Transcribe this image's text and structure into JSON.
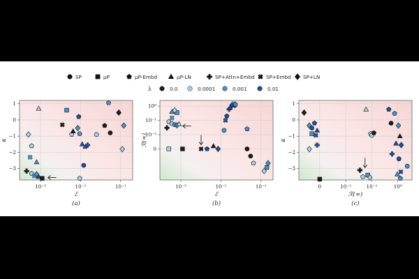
{
  "legend": {
    "markers": [
      {
        "label": "SP",
        "shape": "circle"
      },
      {
        "label": "μP",
        "shape": "square"
      },
      {
        "label": "μP-Embd",
        "shape": "pentagon"
      },
      {
        "label": "μP-LN",
        "shape": "triangle"
      },
      {
        "label": "SP+Attn+Embd",
        "shape": "plus"
      },
      {
        "label": "SP+Embd",
        "shape": "cross"
      },
      {
        "label": "SP+LN",
        "shape": "diamond"
      }
    ],
    "lambda_title": "λ",
    "lambdas": [
      {
        "label": "0.0",
        "color": "#1c1c1c"
      },
      {
        "label": "0.0001",
        "color": "#a9cfe6"
      },
      {
        "label": "0.001",
        "color": "#4a8fc7"
      },
      {
        "label": "0.01",
        "color": "#1f4f98"
      }
    ]
  },
  "chart_data": [
    {
      "type": "scatter",
      "caption": "(a)",
      "xlabel": "ℰ",
      "ylabel": "κ",
      "xscale": "log",
      "xlim": [
        0.0003,
        0.2
      ],
      "ylim": [
        -3.7,
        1.2
      ],
      "xticks": [
        {
          "v": 0.001,
          "label": "10⁻³"
        },
        {
          "v": 0.01,
          "label": "10⁻²"
        },
        {
          "v": 0.1,
          "label": "10⁻¹"
        }
      ],
      "yticks": [
        {
          "v": 1,
          "label": "1"
        },
        {
          "v": 0,
          "label": "0"
        },
        {
          "v": -1,
          "label": "−1"
        },
        {
          "v": -2,
          "label": "−2"
        },
        {
          "v": -3,
          "label": "−3"
        }
      ],
      "annotation": {
        "type": "arrow",
        "direction": "left",
        "at": [
          0.0013,
          -3.55
        ]
      },
      "points": [
        {
          "x": 0.0009,
          "y": -3.5,
          "shape": "triangle",
          "lambda": "0.01"
        },
        {
          "x": 0.0011,
          "y": -3.6,
          "shape": "square",
          "lambda": "0.0"
        },
        {
          "x": 0.0006,
          "y": -3.3,
          "shape": "pentagon",
          "lambda": "0.0001"
        },
        {
          "x": 0.0007,
          "y": -3.45,
          "shape": "cross",
          "lambda": "0.001"
        },
        {
          "x": 0.0008,
          "y": -3.35,
          "shape": "diamond",
          "lambda": "0.001"
        },
        {
          "x": 0.00045,
          "y": -3.15,
          "shape": "plus",
          "lambda": "0.0"
        },
        {
          "x": 0.00055,
          "y": -2.3,
          "shape": "cross",
          "lambda": "0.001"
        },
        {
          "x": 0.0008,
          "y": -2.6,
          "shape": "triangle",
          "lambda": "0.001"
        },
        {
          "x": 0.0006,
          "y": -1.6,
          "shape": "pentagon",
          "lambda": "0.0001"
        },
        {
          "x": 0.0005,
          "y": -0.9,
          "shape": "diamond",
          "lambda": "0.0001"
        },
        {
          "x": 0.0009,
          "y": 0.7,
          "shape": "triangle",
          "lambda": "0.0001"
        },
        {
          "x": 0.0045,
          "y": 0.6,
          "shape": "square",
          "lambda": "0.001"
        },
        {
          "x": 0.0035,
          "y": -0.3,
          "shape": "cross",
          "lambda": "0.0"
        },
        {
          "x": 0.006,
          "y": -0.9,
          "shape": "pentagon",
          "lambda": "0.0001"
        },
        {
          "x": 0.0065,
          "y": -0.7,
          "shape": "triangle",
          "lambda": "0.0"
        },
        {
          "x": 0.0085,
          "y": -0.5,
          "shape": "diamond",
          "lambda": "0.001"
        },
        {
          "x": 0.009,
          "y": 0.2,
          "shape": "pentagon",
          "lambda": "0.01"
        },
        {
          "x": 0.0095,
          "y": -0.85,
          "shape": "circle",
          "lambda": "0.001"
        },
        {
          "x": 0.011,
          "y": -1.5,
          "shape": "triangle",
          "lambda": "0.01"
        },
        {
          "x": 0.013,
          "y": -1.65,
          "shape": "cross",
          "lambda": "0.01"
        },
        {
          "x": 0.015,
          "y": -1.55,
          "shape": "plus",
          "lambda": "0.01"
        },
        {
          "x": 0.012,
          "y": -2.8,
          "shape": "circle",
          "lambda": "0.01"
        },
        {
          "x": 0.0095,
          "y": -3.6,
          "shape": "pentagon",
          "lambda": "0.0001"
        },
        {
          "x": 0.025,
          "y": -0.9,
          "shape": "circle",
          "lambda": "0.0001"
        },
        {
          "x": 0.04,
          "y": -0.35,
          "shape": "pentagon",
          "lambda": "0.0"
        },
        {
          "x": 0.05,
          "y": 1.05,
          "shape": "pentagon",
          "lambda": "0.001"
        },
        {
          "x": 0.055,
          "y": -0.8,
          "shape": "circle",
          "lambda": "0.0"
        },
        {
          "x": 0.09,
          "y": 0.45,
          "shape": "diamond",
          "lambda": "0.0"
        },
        {
          "x": 0.12,
          "y": -0.35,
          "shape": "diamond",
          "lambda": "0.001"
        },
        {
          "x": 0.11,
          "y": -1.8,
          "shape": "diamond",
          "lambda": "0.0001"
        }
      ]
    },
    {
      "type": "scatter",
      "caption": "(b)",
      "xlabel": "ℰ",
      "ylabel": "ℛ(∞)",
      "xscale": "log",
      "yscale": "symlog",
      "xlim": [
        0.0003,
        0.2
      ],
      "ylim": [
        -0.15,
        2.5
      ],
      "xticks": [
        {
          "v": 0.001,
          "label": "10⁻³"
        },
        {
          "v": 0.01,
          "label": "10⁻²"
        },
        {
          "v": 0.1,
          "label": "10⁻¹"
        }
      ],
      "yticks": [
        {
          "v": 1,
          "label": "10⁰"
        },
        {
          "v": 0.1,
          "label": "10⁻¹"
        },
        {
          "v": 0.01,
          "label": "10⁻²"
        },
        {
          "v": 0,
          "label": "0"
        }
      ],
      "annotations": [
        {
          "type": "arrow",
          "direction": "left",
          "at": [
            0.00095,
            0.04
          ]
        },
        {
          "type": "arrow",
          "direction": "down",
          "at": [
            0.0032,
            0.0
          ]
        }
      ],
      "points": [
        {
          "x": 0.00045,
          "y": 0.03,
          "shape": "plus",
          "lambda": "0.0"
        },
        {
          "x": 0.0005,
          "y": 0.08,
          "shape": "pentagon",
          "lambda": "0.0001"
        },
        {
          "x": 0.0006,
          "y": 0.15,
          "shape": "cross",
          "lambda": "0.001"
        },
        {
          "x": 0.0006,
          "y": 0.4,
          "shape": "triangle",
          "lambda": "0.001"
        },
        {
          "x": 0.0008,
          "y": 0.35,
          "shape": "square",
          "lambda": "0.001"
        },
        {
          "x": 0.0007,
          "y": 0.5,
          "shape": "diamond",
          "lambda": "0.0001"
        },
        {
          "x": 0.0006,
          "y": 0.06,
          "shape": "pentagon",
          "lambda": "0.0001"
        },
        {
          "x": 0.0007,
          "y": 0.05,
          "shape": "circle",
          "lambda": "0.001"
        },
        {
          "x": 0.0008,
          "y": 0.045,
          "shape": "diamond",
          "lambda": "0.001"
        },
        {
          "x": 0.0009,
          "y": 0.055,
          "shape": "triangle",
          "lambda": "0.0001"
        },
        {
          "x": 0.0005,
          "y": 0.0,
          "shape": "square",
          "lambda": "0.0001"
        },
        {
          "x": 0.0011,
          "y": 0.0,
          "shape": "square",
          "lambda": "0.0"
        },
        {
          "x": 0.0032,
          "y": 0.0,
          "shape": "cross",
          "lambda": "0.0"
        },
        {
          "x": 0.0045,
          "y": 0.0,
          "shape": "pentagon",
          "lambda": "0.01"
        },
        {
          "x": 0.0065,
          "y": 0.002,
          "shape": "triangle",
          "lambda": "0.0"
        },
        {
          "x": 0.0085,
          "y": 0.0,
          "shape": "diamond",
          "lambda": "0.01"
        },
        {
          "x": 0.012,
          "y": 0.02,
          "shape": "circle",
          "lambda": "0.001"
        },
        {
          "x": 0.013,
          "y": 0.1,
          "shape": "cross",
          "lambda": "0.01"
        },
        {
          "x": 0.014,
          "y": 0.2,
          "shape": "pentagon",
          "lambda": "0.01"
        },
        {
          "x": 0.016,
          "y": 0.6,
          "shape": "plus",
          "lambda": "0.01"
        },
        {
          "x": 0.017,
          "y": 0.8,
          "shape": "triangle",
          "lambda": "0.01"
        },
        {
          "x": 0.019,
          "y": 1.2,
          "shape": "diamond",
          "lambda": "0.01"
        },
        {
          "x": 0.021,
          "y": 1.5,
          "shape": "cross",
          "lambda": "0.001"
        },
        {
          "x": 0.022,
          "y": 1.1,
          "shape": "circle",
          "lambda": "0.01"
        },
        {
          "x": 0.023,
          "y": 1.3,
          "shape": "pentagon",
          "lambda": "0.001"
        },
        {
          "x": 0.045,
          "y": 0.025,
          "shape": "pentagon",
          "lambda": "0.001"
        },
        {
          "x": 0.045,
          "y": 0.0,
          "shape": "circle",
          "lambda": "0.0"
        },
        {
          "x": 0.055,
          "y": -0.005,
          "shape": "circle",
          "lambda": "0.0"
        },
        {
          "x": 0.065,
          "y": -0.01,
          "shape": "pentagon",
          "lambda": "0.0001"
        },
        {
          "x": 0.12,
          "y": -0.035,
          "shape": "diamond",
          "lambda": "0.0001"
        },
        {
          "x": 0.14,
          "y": -0.02,
          "shape": "square",
          "lambda": "0.001"
        },
        {
          "x": 0.15,
          "y": -0.01,
          "shape": "diamond",
          "lambda": "0.001"
        }
      ]
    },
    {
      "type": "scatter",
      "caption": "(c)",
      "xlabel": "ℛ(∞)",
      "ylabel": "κ",
      "xscale": "symlog",
      "xlim": [
        -0.008,
        3.5
      ],
      "ylim": [
        -3.7,
        1.2
      ],
      "xticks": [
        {
          "v": 0,
          "label": "0"
        },
        {
          "v": 0.01,
          "label": "10⁻²"
        },
        {
          "v": 0.1,
          "label": "10⁻¹"
        },
        {
          "v": 1,
          "label": "10⁰"
        }
      ],
      "yticks": [
        {
          "v": 1,
          "label": "1"
        },
        {
          "v": 0,
          "label": "0"
        },
        {
          "v": -1,
          "label": "−1"
        },
        {
          "v": -2,
          "label": "−2"
        },
        {
          "v": -3,
          "label": "−3"
        }
      ],
      "annotation": {
        "type": "arrow",
        "direction": "down",
        "at": [
          0.055,
          -3.2
        ]
      },
      "points": [
        {
          "x": -0.006,
          "y": 0.45,
          "shape": "diamond",
          "lambda": "0.0"
        },
        {
          "x": -0.004,
          "y": -0.35,
          "shape": "diamond",
          "lambda": "0.001"
        },
        {
          "x": -0.003,
          "y": -0.5,
          "shape": "circle",
          "lambda": "0.01"
        },
        {
          "x": -0.002,
          "y": -0.2,
          "shape": "pentagon",
          "lambda": "0.01"
        },
        {
          "x": -0.001,
          "y": -0.65,
          "shape": "triangle",
          "lambda": "0.01"
        },
        {
          "x": -0.003,
          "y": -0.85,
          "shape": "square",
          "lambda": "0.001"
        },
        {
          "x": -0.0015,
          "y": -0.95,
          "shape": "cross",
          "lambda": "0.01"
        },
        {
          "x": -0.004,
          "y": -1.8,
          "shape": "diamond",
          "lambda": "0.0001"
        },
        {
          "x": -0.001,
          "y": -1.55,
          "shape": "plus",
          "lambda": "0.01"
        },
        {
          "x": 0.0,
          "y": -3.65,
          "shape": "square",
          "lambda": "0.0"
        },
        {
          "x": 0.06,
          "y": 0.65,
          "shape": "triangle",
          "lambda": "0.0001"
        },
        {
          "x": 0.09,
          "y": -0.85,
          "shape": "pentagon",
          "lambda": "0.0001"
        },
        {
          "x": 0.1,
          "y": -0.95,
          "shape": "circle",
          "lambda": "0.0001"
        },
        {
          "x": 0.12,
          "y": -0.8,
          "shape": "pentagon",
          "lambda": "0.0"
        },
        {
          "x": 0.45,
          "y": 0.65,
          "shape": "pentagon",
          "lambda": "0.01"
        },
        {
          "x": 0.55,
          "y": -0.2,
          "shape": "circle",
          "lambda": "0.0"
        },
        {
          "x": 0.6,
          "y": -2.1,
          "shape": "plus",
          "lambda": "0.01"
        },
        {
          "x": 0.75,
          "y": 0.4,
          "shape": "pentagon",
          "lambda": "0.001"
        },
        {
          "x": 0.85,
          "y": -1.45,
          "shape": "triangle",
          "lambda": "0.01"
        },
        {
          "x": 1.05,
          "y": -0.35,
          "shape": "diamond",
          "lambda": "0.001"
        },
        {
          "x": 1.1,
          "y": -2.4,
          "shape": "circle",
          "lambda": "0.01"
        },
        {
          "x": 1.2,
          "y": -1.0,
          "shape": "triangle",
          "lambda": "0.0"
        },
        {
          "x": 1.3,
          "y": -3.2,
          "shape": "cross",
          "lambda": "0.01"
        },
        {
          "x": 1.35,
          "y": -1.55,
          "shape": "diamond",
          "lambda": "0.01"
        },
        {
          "x": 2.3,
          "y": -2.85,
          "shape": "circle",
          "lambda": "0.001"
        },
        {
          "x": 0.035,
          "y": -3.1,
          "shape": "plus",
          "lambda": "0.0"
        },
        {
          "x": 0.045,
          "y": -3.5,
          "shape": "pentagon",
          "lambda": "0.0001"
        },
        {
          "x": 0.07,
          "y": -3.4,
          "shape": "square",
          "lambda": "0.001"
        },
        {
          "x": 0.085,
          "y": -3.55,
          "shape": "diamond",
          "lambda": "0.0001"
        },
        {
          "x": 0.95,
          "y": -3.35,
          "shape": "triangle",
          "lambda": "0.001"
        },
        {
          "x": 1.25,
          "y": -3.6,
          "shape": "pentagon",
          "lambda": "0.001"
        }
      ]
    }
  ]
}
